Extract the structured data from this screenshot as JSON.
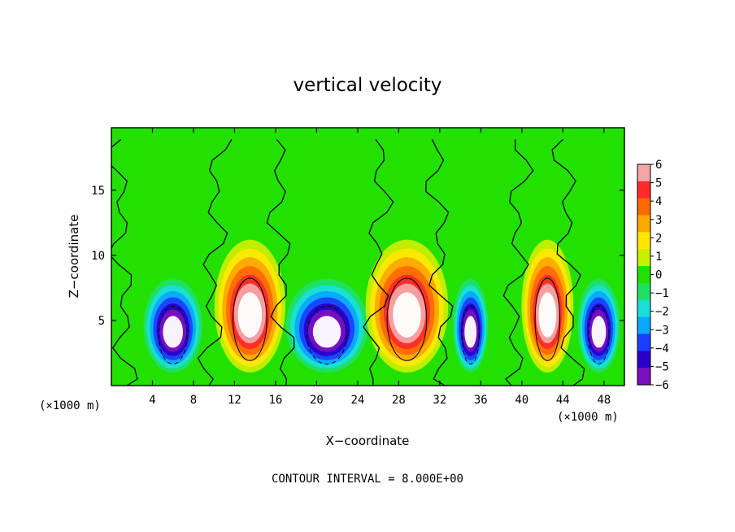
{
  "chart_data": {
    "type": "heatmap",
    "title": "vertical velocity",
    "xlabel": "X−coordinate",
    "ylabel": "Z−coordinate",
    "x_unit": "(×1000 m)",
    "x_ticks": [
      4,
      8,
      12,
      16,
      20,
      24,
      28,
      32,
      36,
      40,
      44,
      48
    ],
    "y_ticks": [
      5,
      10,
      15
    ],
    "xlim": [
      0,
      50
    ],
    "ylim": [
      0,
      19.8
    ],
    "footer": "CONTOUR INTERVAL = 8.000E+00",
    "colorbar": {
      "ticks": [
        "6",
        "5",
        "4",
        "3",
        "2",
        "1",
        "0",
        "−1",
        "−2",
        "−3",
        "−4",
        "−5",
        "−6"
      ],
      "range": [
        -6,
        6
      ],
      "colors": [
        "#f4a5a5",
        "#ff2a2a",
        "#ff6a00",
        "#ffa800",
        "#ffe800",
        "#c8ee00",
        "#22e000",
        "#20df68",
        "#18e0d8",
        "#0aa8ff",
        "#1a40ff",
        "#2800c8",
        "#7a10c0"
      ]
    },
    "cells": [
      {
        "x": 6,
        "w": 2.5,
        "peak": -7
      },
      {
        "x": 13.5,
        "w": 3.0,
        "peak": 9
      },
      {
        "x": 21,
        "w": 3.5,
        "peak": -7
      },
      {
        "x": 28.8,
        "w": 3.5,
        "peak": 9
      },
      {
        "x": 35,
        "w": 1.5,
        "peak": -7
      },
      {
        "x": 42.5,
        "w": 2.2,
        "peak": 6
      },
      {
        "x": 47.5,
        "w": 1.8,
        "peak": -7
      }
    ]
  }
}
